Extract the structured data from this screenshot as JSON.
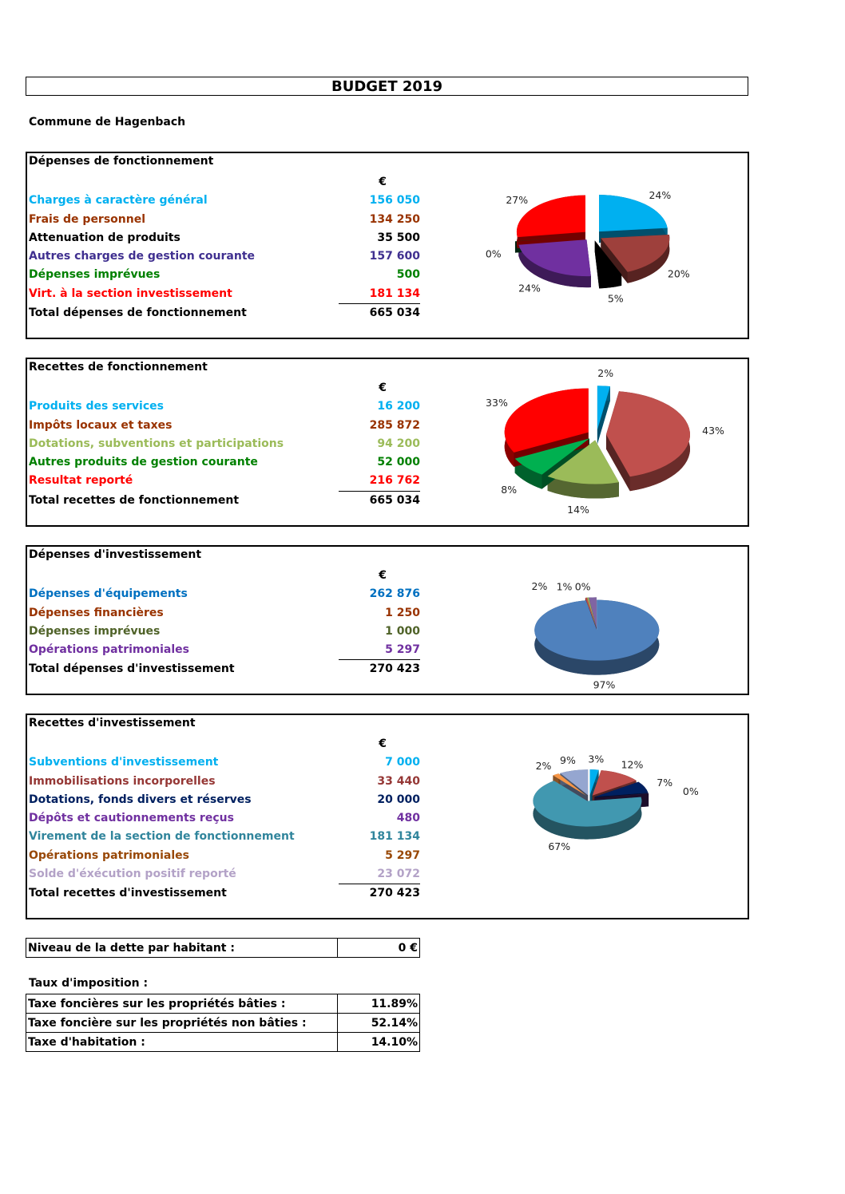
{
  "title": "BUDGET 2019",
  "commune": "Commune de Hagenbach",
  "currency": "€",
  "sections": [
    {
      "heading": "Dépenses de fonctionnement",
      "rows": [
        {
          "label": "Charges à caractère général",
          "value": "156 050",
          "color": "#00b0f0"
        },
        {
          "label": "Frais de personnel",
          "value": "134 250",
          "color": "#993300"
        },
        {
          "label": "Attenuation de produits",
          "value": "35 500",
          "color": "#000000"
        },
        {
          "label": "Autres charges de gestion courante",
          "value": "157 600",
          "color": "#403090"
        },
        {
          "label": "Dépenses imprévues",
          "value": "500",
          "color": "#008000"
        },
        {
          "label": "Virt. à la section investissement",
          "value": "181 134",
          "color": "#ff0000"
        }
      ],
      "total": {
        "label": "Total dépenses de fonctionnement",
        "value": "665 034"
      }
    },
    {
      "heading": "Recettes de fonctionnement",
      "rows": [
        {
          "label": "Produits des services",
          "value": "16 200",
          "color": "#00b0f0"
        },
        {
          "label": "Impôts locaux et taxes",
          "value": "285 872",
          "color": "#993300"
        },
        {
          "label": "Dotations, subventions et participations",
          "value": "94 200",
          "color": "#9bbb59"
        },
        {
          "label": "Autres produits de gestion courante",
          "value": "52 000",
          "color": "#008000"
        },
        {
          "label": "Resultat reporté",
          "value": "216 762",
          "color": "#ff0000"
        }
      ],
      "total": {
        "label": "Total recettes de fonctionnement",
        "value": "665 034"
      }
    },
    {
      "heading": "Dépenses d'investissement",
      "rows": [
        {
          "label": "Dépenses d'équipements",
          "value": "262 876",
          "color": "#0070c0"
        },
        {
          "label": "Dépenses financières",
          "value": "1 250",
          "color": "#993300"
        },
        {
          "label": "Dépenses imprévues",
          "value": "1 000",
          "color": "#4f6228"
        },
        {
          "label": "Opérations patrimoniales",
          "value": "5 297",
          "color": "#7030a0"
        }
      ],
      "total": {
        "label": "Total dépenses d'investissement",
        "value": "270 423"
      }
    },
    {
      "heading": "Recettes d'investissement",
      "rows": [
        {
          "label": "Subventions d'investissement",
          "value": "7 000",
          "color": "#00b0f0"
        },
        {
          "label": "Immobilisations incorporelles",
          "value": "33 440",
          "color": "#953735"
        },
        {
          "label": "Dotations, fonds divers et réserves",
          "value": "20 000",
          "color": "#002060"
        },
        {
          "label": "Dépôts et cautionnements reçus",
          "value": "480",
          "color": "#7030a0"
        },
        {
          "label": "Virement de la section de fonctionnement",
          "value": "181 134",
          "color": "#31859c"
        },
        {
          "label": "Opérations patrimoniales",
          "value": "5 297",
          "color": "#984807"
        },
        {
          "label": "Solde d'éxécution positif reporté",
          "value": "23 072",
          "color": "#b3a2c7"
        }
      ],
      "total": {
        "label": "Total recettes d'investissement",
        "value": "270 423"
      }
    }
  ],
  "chart_data": [
    {
      "type": "pie",
      "title": "Dépenses de fonctionnement",
      "categories": [
        "Charges à caractère général",
        "Frais de personnel",
        "Attenuation de produits",
        "Autres charges de gestion courante",
        "Dépenses imprévues",
        "Virt. à la section investissement"
      ],
      "values": [
        156050,
        134250,
        35500,
        157600,
        500,
        181134
      ],
      "labels": [
        "24%",
        "20%",
        "5%",
        "24%",
        "0%",
        "27%"
      ],
      "colors": [
        "#00b0f0",
        "#9e403c",
        "#000000",
        "#7030a0",
        "#004d26",
        "#ff0000"
      ]
    },
    {
      "type": "pie",
      "title": "Recettes de fonctionnement",
      "categories": [
        "Produits des services",
        "Impôts locaux et taxes",
        "Dotations, subventions et participations",
        "Autres produits de gestion courante",
        "Resultat reporté"
      ],
      "values": [
        16200,
        285872,
        94200,
        52000,
        216762
      ],
      "labels": [
        "2%",
        "43%",
        "14%",
        "8%",
        "33%"
      ],
      "colors": [
        "#00b0f0",
        "#c0504d",
        "#9bbb59",
        "#00b050",
        "#ff0000"
      ]
    },
    {
      "type": "pie",
      "title": "Dépenses d'investissement",
      "categories": [
        "Dépenses d'équipements",
        "Dépenses financières",
        "Dépenses imprévues",
        "Opérations patrimoniales"
      ],
      "values": [
        262876,
        1250,
        1000,
        5297
      ],
      "labels": [
        "97%",
        "0%",
        "1%",
        "2%"
      ],
      "colors": [
        "#4f81bd",
        "#c0504d",
        "#9bbb59",
        "#8064a2"
      ]
    },
    {
      "type": "pie",
      "title": "Recettes d'investissement",
      "categories": [
        "Subventions d'investissement",
        "Immobilisations incorporelles",
        "Dotations, fonds divers et réserves",
        "Dépôts et cautionnements reçus",
        "Virement de la section de fonctionnement",
        "Opérations patrimoniales",
        "Solde d'éxécution positif reporté"
      ],
      "values": [
        7000,
        33440,
        20000,
        480,
        181134,
        5297,
        23072
      ],
      "labels": [
        "3%",
        "12%",
        "7%",
        "0%",
        "67%",
        "2%",
        "9%"
      ],
      "colors": [
        "#00b0f0",
        "#c0504d",
        "#002060",
        "#3f1f5f",
        "#4198b0",
        "#f79646",
        "#95a6d0"
      ]
    }
  ],
  "dette": {
    "label": "Niveau de la dette par habitant :",
    "value": "0 €"
  },
  "taux": {
    "heading": "Taux d'imposition :",
    "rows": [
      {
        "label": "Taxe foncières sur les propriétés bâties :",
        "value": "11.89%"
      },
      {
        "label": "Taxe foncière sur les propriétés non bâties :",
        "value": "52.14%"
      },
      {
        "label": "Taxe d'habitation :",
        "value": "14.10%"
      }
    ]
  }
}
